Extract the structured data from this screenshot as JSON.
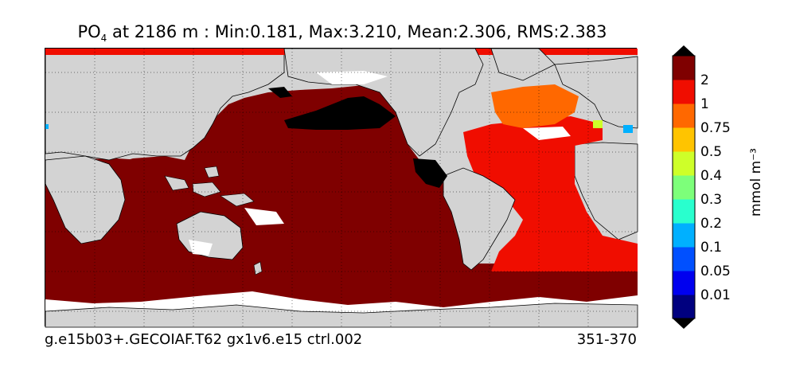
{
  "title": {
    "variable": "PO",
    "subscript": "4",
    "rest": " at 2186 m : Min:0.181, Max:3.210, Mean:2.306, RMS:2.383"
  },
  "footer": {
    "left": "g.e15b03+.GECOIAF.T62 gx1v6.e15 ctrl.002",
    "right": "351-370"
  },
  "colorbar": {
    "units_label": "mmol m⁻³",
    "tick_labels": [
      "0.01",
      "0.05",
      "0.1",
      "0.2",
      "0.3",
      "0.4",
      "0.5",
      "0.75",
      "1",
      "2"
    ],
    "colors": [
      "#00007f",
      "#0000ef",
      "#0050ff",
      "#00b0ff",
      "#29ffce",
      "#7dff7a",
      "#ceff29",
      "#ffc400",
      "#ff6800",
      "#f00d00",
      "#7f0000"
    ],
    "under_color": "#000000",
    "over_color": "#000000"
  },
  "map": {
    "land_color": "#d3d3d3",
    "nodata_color": "#ffffff",
    "pacific_indian_color": "#7f0000",
    "atlantic_color": "#f00d00",
    "north_atlantic_color": "#ff6800",
    "low_value_color": "#000000"
  }
}
